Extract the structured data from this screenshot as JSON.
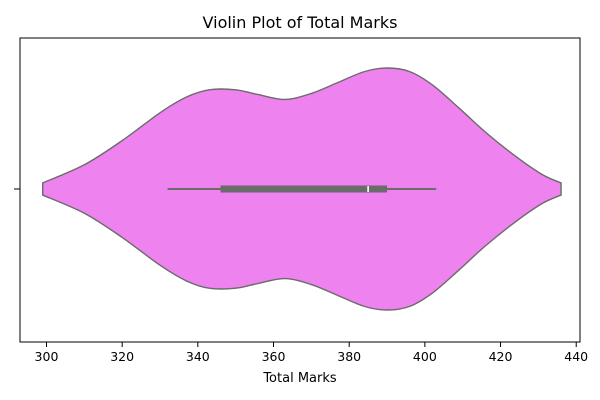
{
  "chart_data": {
    "type": "violin",
    "title": "Violin Plot of Total Marks",
    "xlabel": "Total Marks",
    "ylabel": "",
    "orientation": "horizontal",
    "xlim": [
      293,
      441
    ],
    "xticks": [
      300,
      320,
      340,
      360,
      380,
      400,
      420,
      440
    ],
    "color": "#ee82ee",
    "edge_color": "#6b6b6b",
    "grid": false,
    "data_range": [
      299,
      436
    ],
    "density_profile": [
      {
        "x": 299,
        "d": 0.05
      },
      {
        "x": 310,
        "d": 0.2
      },
      {
        "x": 320,
        "d": 0.4
      },
      {
        "x": 330,
        "d": 0.63
      },
      {
        "x": 337,
        "d": 0.76
      },
      {
        "x": 343,
        "d": 0.82
      },
      {
        "x": 350,
        "d": 0.82
      },
      {
        "x": 356,
        "d": 0.78
      },
      {
        "x": 363,
        "d": 0.74
      },
      {
        "x": 370,
        "d": 0.79
      },
      {
        "x": 377,
        "d": 0.88
      },
      {
        "x": 384,
        "d": 0.97
      },
      {
        "x": 390,
        "d": 1.0
      },
      {
        "x": 396,
        "d": 0.97
      },
      {
        "x": 402,
        "d": 0.86
      },
      {
        "x": 409,
        "d": 0.67
      },
      {
        "x": 416,
        "d": 0.47
      },
      {
        "x": 424,
        "d": 0.27
      },
      {
        "x": 431,
        "d": 0.12
      },
      {
        "x": 436,
        "d": 0.05
      }
    ],
    "box": {
      "whisker_low": 332,
      "q1": 346,
      "median": 385,
      "q3": 390,
      "whisker_high": 403
    }
  }
}
